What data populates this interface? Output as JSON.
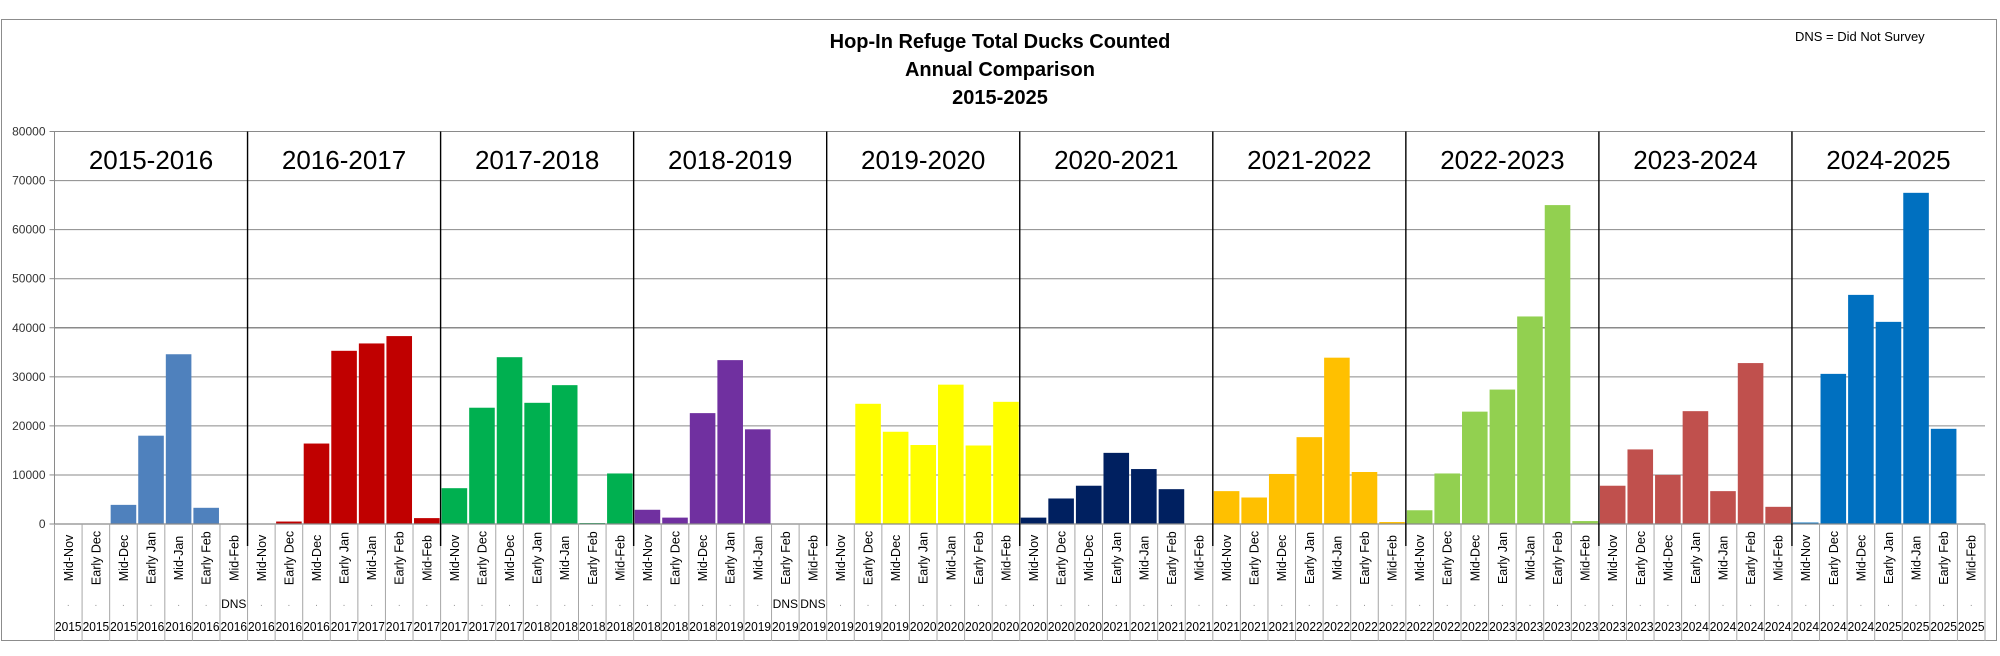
{
  "chart_data": {
    "type": "bar",
    "title": [
      "Hop-In Refuge Total Ducks Counted",
      "Annual Comparison",
      "2015-2025"
    ],
    "note": "DNS = Did Not Survey",
    "xlabel": "",
    "ylabel": "",
    "ylim": [
      0,
      80000
    ],
    "yticks": [
      0,
      10000,
      20000,
      30000,
      40000,
      50000,
      60000,
      70000,
      80000
    ],
    "grid": true,
    "legend": "none",
    "months": [
      "Mid-Nov",
      "Early Dec",
      "Mid-Dec",
      "Early Jan",
      "Mid-Jan",
      "Early Feb",
      "Mid-Feb"
    ],
    "dns_label": "DNS",
    "placeholder_label": ".",
    "series": [
      {
        "name": "2015-2016",
        "color": "#4F81BD",
        "years": [
          "2015",
          "2015",
          "2015",
          "2016",
          "2016",
          "2016",
          "2016"
        ],
        "values": [
          0,
          0,
          3900,
          18000,
          34600,
          3300,
          null
        ],
        "dns": [
          false,
          false,
          false,
          false,
          false,
          false,
          true
        ]
      },
      {
        "name": "2016-2017",
        "color": "#C00000",
        "years": [
          "2016",
          "2016",
          "2016",
          "2017",
          "2017",
          "2017",
          "2017"
        ],
        "values": [
          0,
          500,
          16400,
          35300,
          36800,
          38300,
          1200
        ],
        "dns": [
          false,
          false,
          false,
          false,
          false,
          false,
          false
        ]
      },
      {
        "name": "2017-2018",
        "color": "#00B050",
        "years": [
          "2017",
          "2017",
          "2017",
          "2018",
          "2018",
          "2018",
          "2018"
        ],
        "values": [
          7300,
          23700,
          34000,
          24700,
          28300,
          200,
          10300
        ],
        "dns": [
          false,
          false,
          false,
          false,
          false,
          false,
          false
        ]
      },
      {
        "name": "2018-2019",
        "color": "#7030A0",
        "years": [
          "2018",
          "2018",
          "2018",
          "2019",
          "2019",
          "2019",
          "2019"
        ],
        "values": [
          2900,
          1300,
          22600,
          33400,
          19300,
          null,
          null
        ],
        "dns": [
          false,
          false,
          false,
          false,
          false,
          true,
          true
        ]
      },
      {
        "name": "2019-2020",
        "color": "#FFFF00",
        "years": [
          "2019",
          "2019",
          "2019",
          "2020",
          "2020",
          "2020",
          "2020"
        ],
        "values": [
          100,
          24500,
          18800,
          16100,
          28400,
          16000,
          24900
        ],
        "dns": [
          false,
          false,
          false,
          false,
          false,
          false,
          false
        ]
      },
      {
        "name": "2020-2021",
        "color": "#002060",
        "years": [
          "2020",
          "2020",
          "2020",
          "2021",
          "2021",
          "2021",
          "2021"
        ],
        "values": [
          1300,
          5200,
          7800,
          14500,
          11200,
          7100,
          0
        ],
        "dns": [
          false,
          false,
          false,
          false,
          false,
          false,
          false
        ]
      },
      {
        "name": "2021-2022",
        "color": "#FFC000",
        "years": [
          "2021",
          "2021",
          "2021",
          "2022",
          "2022",
          "2022",
          "2022"
        ],
        "values": [
          6700,
          5400,
          10200,
          17700,
          33900,
          10600,
          400
        ],
        "dns": [
          false,
          false,
          false,
          false,
          false,
          false,
          false
        ]
      },
      {
        "name": "2022-2023",
        "color": "#92D050",
        "years": [
          "2022",
          "2022",
          "2022",
          "2023",
          "2023",
          "2023",
          "2023"
        ],
        "values": [
          2800,
          10300,
          22900,
          27400,
          42300,
          65000,
          600
        ],
        "dns": [
          false,
          false,
          false,
          false,
          false,
          false,
          false
        ]
      },
      {
        "name": "2023-2024",
        "color": "#C0504D",
        "years": [
          "2023",
          "2023",
          "2023",
          "2024",
          "2024",
          "2024",
          "2024"
        ],
        "values": [
          7800,
          15200,
          10000,
          23000,
          6700,
          32800,
          3500
        ],
        "dns": [
          false,
          false,
          false,
          false,
          false,
          false,
          false
        ]
      },
      {
        "name": "2024-2025",
        "color": "#0070C0",
        "years": [
          "2024",
          "2024",
          "2024",
          "2025",
          "2025",
          "2025",
          "2025"
        ],
        "values": [
          300,
          30600,
          46700,
          41200,
          67500,
          19400,
          0
        ],
        "dns": [
          false,
          false,
          false,
          false,
          false,
          false,
          false
        ]
      }
    ]
  }
}
